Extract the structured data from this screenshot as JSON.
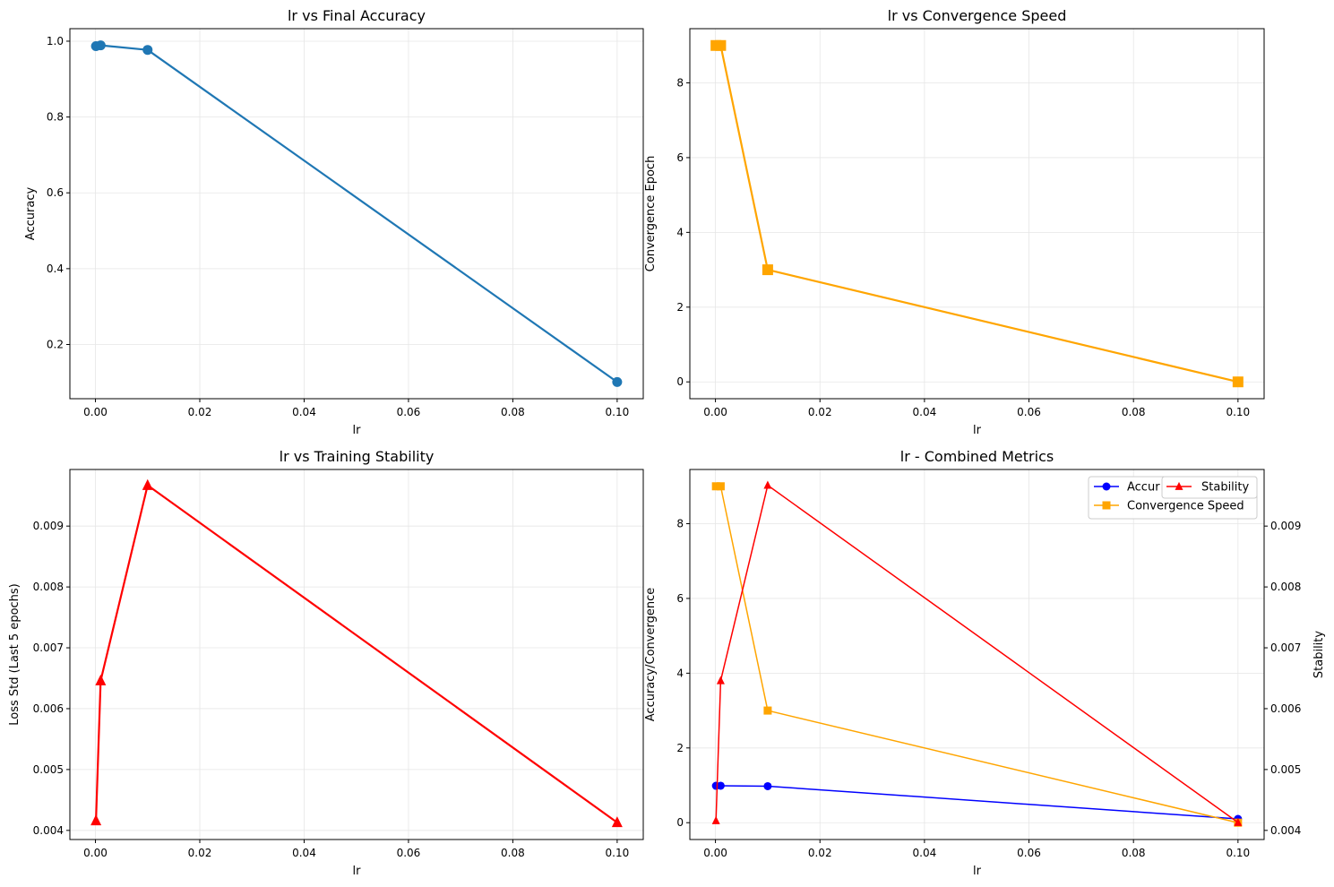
{
  "chart_data": [
    {
      "type": "line",
      "title": "lr vs Final Accuracy",
      "xlabel": "lr",
      "ylabel": "Accuracy",
      "x": [
        0.0001,
        0.001,
        0.01,
        0.1
      ],
      "series": [
        {
          "name": "Accuracy",
          "values": [
            0.987,
            0.989,
            0.977,
            0.101
          ],
          "color": "#1f77b4",
          "marker": "circle"
        }
      ],
      "xlim": [
        -0.0049,
        0.105
      ],
      "ylim": [
        0.057,
        1.033
      ],
      "xticks": [
        0.0,
        0.02,
        0.04,
        0.06,
        0.08,
        0.1
      ],
      "xtick_labels": [
        "0.00",
        "0.02",
        "0.04",
        "0.06",
        "0.08",
        "0.10"
      ],
      "yticks": [
        0.2,
        0.4,
        0.6,
        0.8,
        1.0
      ],
      "ytick_labels": [
        "0.2",
        "0.4",
        "0.6",
        "0.8",
        "1.0"
      ],
      "grid": true
    },
    {
      "type": "line",
      "title": "lr vs Convergence Speed",
      "xlabel": "lr",
      "ylabel": "Convergence Epoch",
      "x": [
        0.0001,
        0.001,
        0.01,
        0.1
      ],
      "series": [
        {
          "name": "Convergence Epoch",
          "values": [
            9,
            9,
            3,
            0
          ],
          "color": "#ffa500",
          "marker": "square"
        }
      ],
      "xlim": [
        -0.0049,
        0.105
      ],
      "ylim": [
        -0.45,
        9.45
      ],
      "xticks": [
        0.0,
        0.02,
        0.04,
        0.06,
        0.08,
        0.1
      ],
      "xtick_labels": [
        "0.00",
        "0.02",
        "0.04",
        "0.06",
        "0.08",
        "0.10"
      ],
      "yticks": [
        0,
        2,
        4,
        6,
        8
      ],
      "ytick_labels": [
        "0",
        "2",
        "4",
        "6",
        "8"
      ],
      "grid": true
    },
    {
      "type": "line",
      "title": "lr vs Training Stability",
      "xlabel": "lr",
      "ylabel": "Loss Std (Last 5 epochs)",
      "x": [
        0.0001,
        0.001,
        0.01,
        0.1
      ],
      "series": [
        {
          "name": "Stability",
          "values": [
            0.00416,
            0.00646,
            0.00967,
            0.00413
          ],
          "color": "#ff0000",
          "marker": "triangle"
        }
      ],
      "xlim": [
        -0.0049,
        0.105
      ],
      "ylim": [
        0.00385,
        0.00993
      ],
      "xticks": [
        0.0,
        0.02,
        0.04,
        0.06,
        0.08,
        0.1
      ],
      "xtick_labels": [
        "0.00",
        "0.02",
        "0.04",
        "0.06",
        "0.08",
        "0.10"
      ],
      "yticks": [
        0.004,
        0.005,
        0.006,
        0.007,
        0.008,
        0.009
      ],
      "ytick_labels": [
        "0.004",
        "0.005",
        "0.006",
        "0.007",
        "0.008",
        "0.009"
      ],
      "grid": true
    },
    {
      "type": "line",
      "title": "lr - Combined Metrics",
      "xlabel": "lr",
      "ylabel": "Accuracy/Convergence",
      "ylabel_right": "Stability",
      "x": [
        0.0001,
        0.001,
        0.01,
        0.1
      ],
      "series": [
        {
          "name": "Accuracy",
          "values": [
            0.987,
            0.989,
            0.977,
            0.101
          ],
          "color": "#0000ff",
          "marker": "circle",
          "axis": "left"
        },
        {
          "name": "Convergence Speed",
          "values": [
            9,
            9,
            3,
            0
          ],
          "color": "#ffa500",
          "marker": "square",
          "axis": "left"
        },
        {
          "name": "Stability",
          "values": [
            0.00416,
            0.00646,
            0.00967,
            0.00413
          ],
          "color": "#ff0000",
          "marker": "triangle",
          "axis": "right"
        }
      ],
      "xlim": [
        -0.0049,
        0.105
      ],
      "ylim": [
        -0.45,
        9.45
      ],
      "ylim_right": [
        0.00385,
        0.00993
      ],
      "xticks": [
        0.0,
        0.02,
        0.04,
        0.06,
        0.08,
        0.1
      ],
      "xtick_labels": [
        "0.00",
        "0.02",
        "0.04",
        "0.06",
        "0.08",
        "0.10"
      ],
      "yticks": [
        0,
        2,
        4,
        6,
        8
      ],
      "ytick_labels": [
        "0",
        "2",
        "4",
        "6",
        "8"
      ],
      "yticks_right": [
        0.004,
        0.005,
        0.006,
        0.007,
        0.008,
        0.009
      ],
      "ytick_labels_right": [
        "0.004",
        "0.005",
        "0.006",
        "0.007",
        "0.008",
        "0.009"
      ],
      "legend_left": [
        "Accuracy",
        "Convergence Speed"
      ],
      "legend_left_shown": [
        "Accur",
        "Convergence Speed"
      ],
      "legend_right": [
        "Stability"
      ],
      "legend_position": "upper right",
      "grid": true
    }
  ]
}
